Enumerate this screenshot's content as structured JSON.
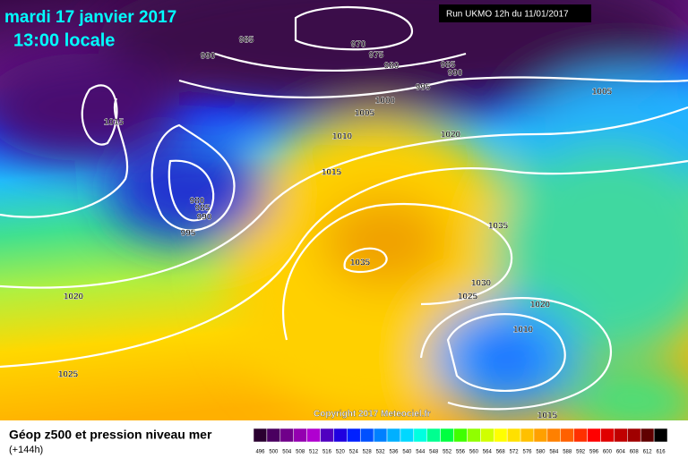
{
  "header": {
    "date": "mardi 17 janvier 2017",
    "time": "13:00 locale",
    "run": "Run UKMO 12h du 11/01/2017"
  },
  "map": {
    "isobar_labels": [
      985,
      970,
      990,
      975,
      980,
      985,
      990,
      995,
      1005,
      1000,
      1005,
      1015,
      1020,
      1010,
      1015,
      980,
      985,
      990,
      995,
      1035,
      1035,
      1030,
      1025,
      1020,
      1020,
      1010,
      1025,
      1015
    ],
    "copyright": "Copyright 2017 Meteociel.fr"
  },
  "footer": {
    "title": "Géop z500 et pression niveau mer",
    "lead": "(+144h)"
  },
  "colorscale": {
    "labels": [
      496,
      500,
      504,
      508,
      512,
      516,
      520,
      524,
      528,
      532,
      536,
      540,
      544,
      548,
      552,
      556,
      560,
      564,
      568,
      572,
      576,
      580,
      584,
      588,
      592,
      596,
      600,
      604,
      608,
      612,
      616
    ],
    "colors": [
      "#2a0030",
      "#4a0060",
      "#70008a",
      "#9400b0",
      "#b000d0",
      "#5000c0",
      "#2000e0",
      "#0020ff",
      "#0050ff",
      "#0080ff",
      "#00b0ff",
      "#00d8ff",
      "#00ffe0",
      "#00ff90",
      "#00ff40",
      "#40ff00",
      "#90ff00",
      "#d0ff00",
      "#ffff00",
      "#ffe000",
      "#ffc000",
      "#ffa000",
      "#ff8000",
      "#ff6000",
      "#ff3000",
      "#ff0000",
      "#e00000",
      "#c00000",
      "#a00000",
      "#600000",
      "#000000"
    ]
  }
}
